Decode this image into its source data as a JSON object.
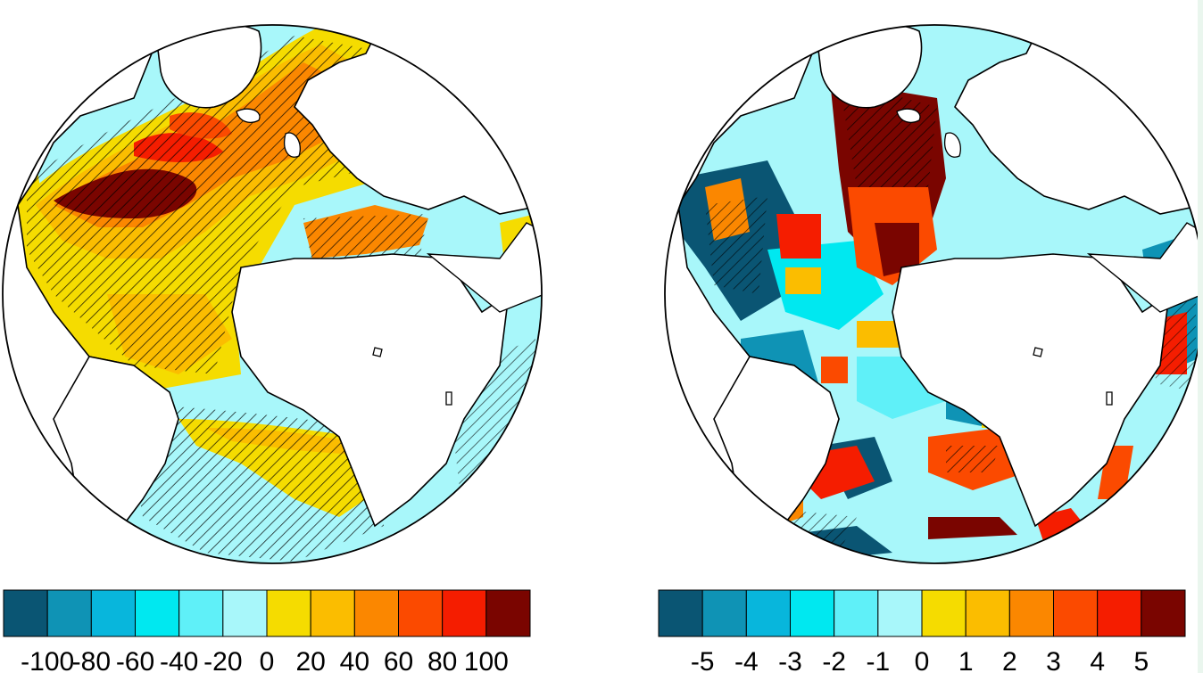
{
  "maps": [
    {
      "colorbar": {
        "colors": [
          "#0a5573",
          "#0f93b5",
          "#08b6dc",
          "#00e8f0",
          "#5ff0f8",
          "#a8f7fa",
          "#f5dc00",
          "#fbbd00",
          "#fb8700",
          "#fb4a00",
          "#f51d00",
          "#7a0500"
        ],
        "labels": [
          "-100",
          "-80",
          "-60",
          "-40",
          "-20",
          "0",
          "20",
          "40",
          "60",
          "80",
          "100"
        ]
      }
    },
    {
      "colorbar": {
        "colors": [
          "#0a5573",
          "#0f93b5",
          "#08b6dc",
          "#00e8f0",
          "#5ff0f8",
          "#a8f7fa",
          "#f5dc00",
          "#fbbd00",
          "#fb8700",
          "#fb4a00",
          "#f51d00",
          "#7a0500"
        ],
        "labels": [
          "-5",
          "-4",
          "-3",
          "-2",
          "-1",
          "0",
          "1",
          "2",
          "3",
          "4",
          "5"
        ]
      }
    }
  ]
}
